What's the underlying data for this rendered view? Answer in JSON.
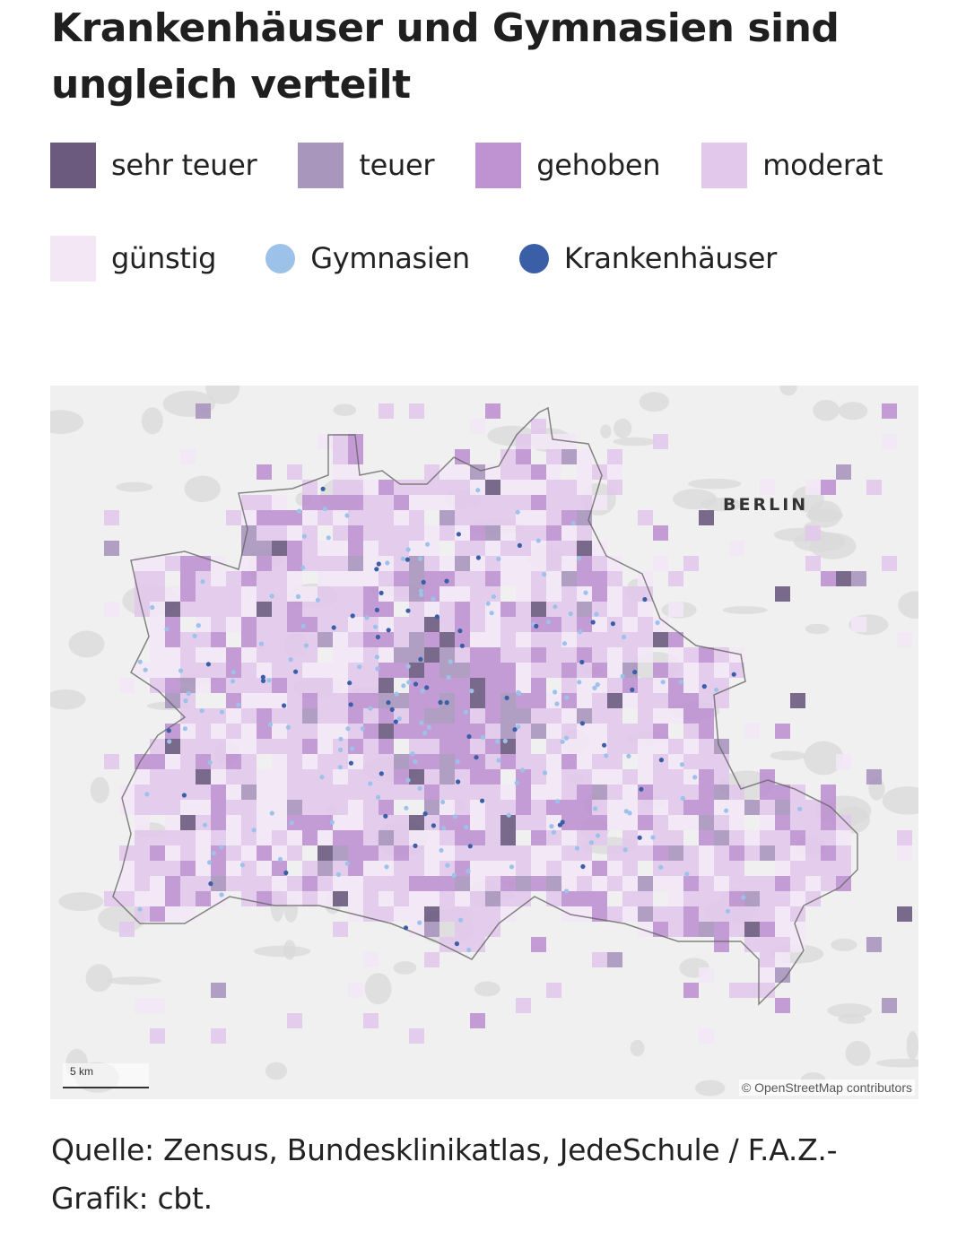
{
  "title": "Krankenhäuser und Gymnasien sind ungleich verteilt",
  "legend": {
    "items": [
      {
        "label": "sehr teuer",
        "color": "#6b5a7e",
        "kind": "square"
      },
      {
        "label": "teuer",
        "color": "#a996bd",
        "kind": "square"
      },
      {
        "label": "gehoben",
        "color": "#bf92d2",
        "kind": "square"
      },
      {
        "label": "moderat",
        "color": "#e2c9eb",
        "kind": "square"
      },
      {
        "label": "günstig",
        "color": "#f3e7f6",
        "kind": "square"
      },
      {
        "label": "Gymnasien",
        "color": "#9dc2ea",
        "kind": "dot"
      },
      {
        "label": "Krankenhäuser",
        "color": "#3a5fa6",
        "kind": "dot"
      }
    ]
  },
  "map": {
    "city_label": "BERLIN",
    "scale_label": "5 km",
    "attribution": "© OpenStreetMap contributors",
    "background_color": "#f0f0f0",
    "forest_color": "#d9d9d9"
  },
  "source": "Quelle: Zensus, Bundesklinikatlas, JedeSchule / F.A.Z.-Grafik: cbt."
}
